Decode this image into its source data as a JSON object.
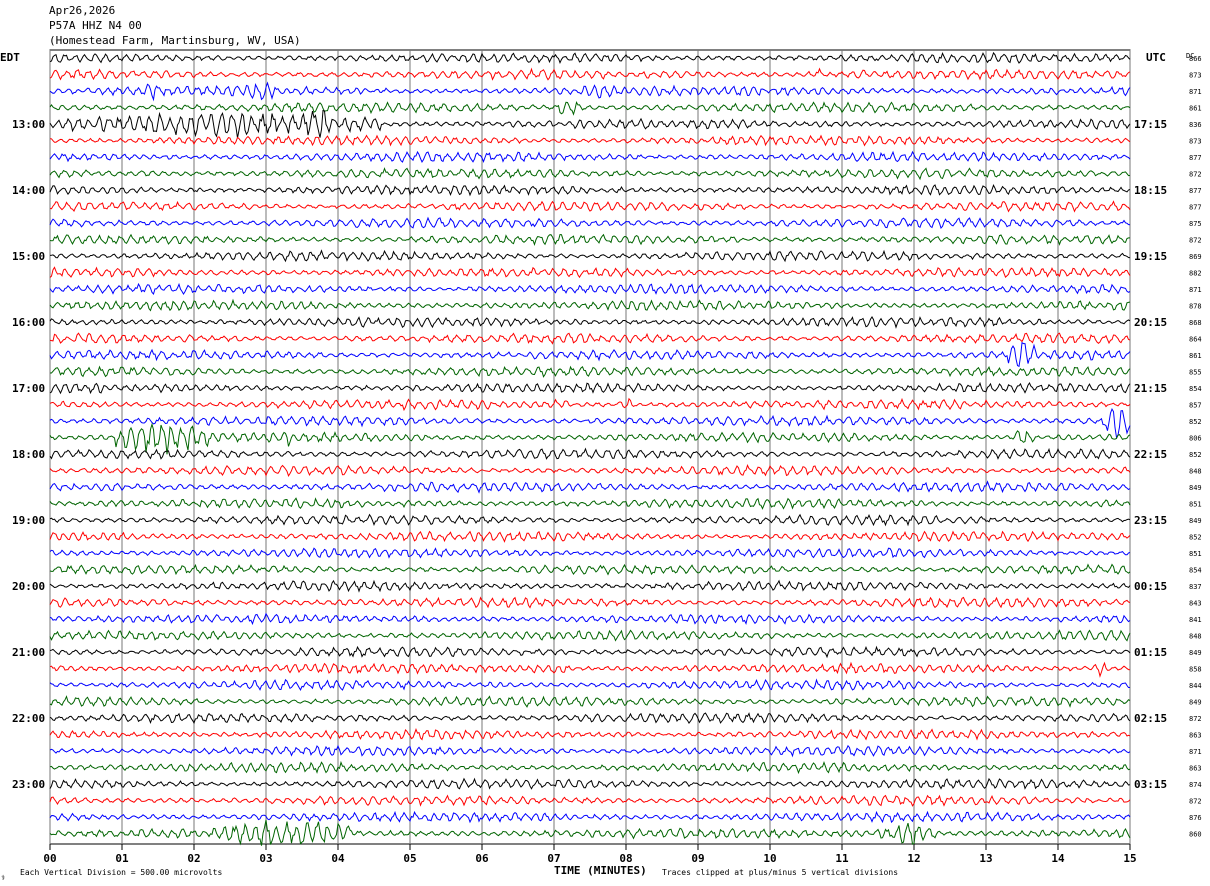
{
  "header": {
    "date": "Apr26,2026",
    "station": "P57A HHZ N4 00",
    "location": "(Homestead Farm, Martinsburg, WV, USA)"
  },
  "left_axis_label": "EDT",
  "right_axis_label": "UTC",
  "dc_label": "DC",
  "footer": {
    "scale_note": "Each Vertical Division =  500.00 microvolts",
    "clip_note": "Traces clipped at plus/minus 5 vertical divisions",
    "corner_mark": "⚕"
  },
  "chart_data": {
    "type": "line",
    "title": "",
    "xlabel": "TIME (MINUTES)",
    "ylabel": "",
    "x_ticks": [
      "00",
      "01",
      "02",
      "03",
      "04",
      "05",
      "06",
      "07",
      "08",
      "09",
      "10",
      "11",
      "12",
      "13",
      "14",
      "15"
    ],
    "xlim": [
      0,
      15
    ],
    "grid": "vertical lines every minute",
    "left_time_labels": [
      "13:00",
      "14:00",
      "15:00",
      "16:00",
      "17:00",
      "18:00",
      "19:00",
      "20:00",
      "21:00",
      "22:00",
      "23:00"
    ],
    "right_time_labels": [
      "17:15",
      "18:15",
      "19:15",
      "20:15",
      "21:15",
      "22:15",
      "23:15",
      "00:15",
      "01:15",
      "02:15",
      "03:15"
    ],
    "trace_colors": [
      "#000000",
      "#ff0000",
      "#0000ff",
      "#006400"
    ],
    "dc_offsets": [
      866,
      873,
      871,
      861,
      836,
      873,
      877,
      872,
      877,
      877,
      875,
      872,
      869,
      882,
      871,
      878,
      868,
      864,
      861,
      855,
      854,
      857,
      852,
      806,
      852,
      848,
      849,
      851,
      849,
      852,
      851,
      854,
      837,
      843,
      841,
      848,
      849,
      858,
      844,
      849,
      872,
      863,
      871,
      863,
      874,
      872,
      876,
      860
    ]
  }
}
